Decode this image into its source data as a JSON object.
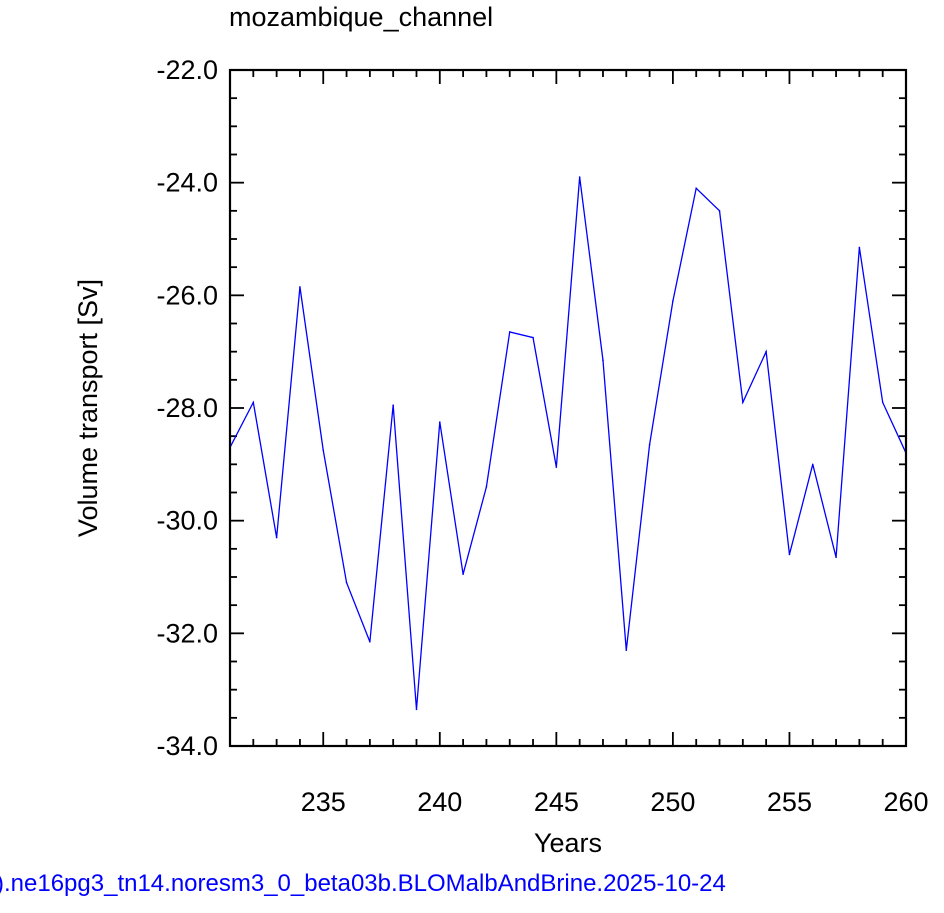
{
  "title": "mozambique_channel",
  "footer": ").ne16pg3_tn14.noresm3_0_beta03b.BLOMalbAndBrine.2025-10-24",
  "chart_data": {
    "type": "line",
    "title": "mozambique_channel",
    "xlabel": "Years",
    "ylabel": "Volume transport [Sv]",
    "xlim": [
      231,
      260
    ],
    "ylim": [
      -34.0,
      -22.0
    ],
    "x_ticks": [
      235,
      240,
      245,
      250,
      255,
      260
    ],
    "x_tick_labels": [
      "235",
      "240",
      "245",
      "250",
      "255",
      "260"
    ],
    "y_ticks": [
      -34.0,
      -32.0,
      -30.0,
      -28.0,
      -26.0,
      -24.0,
      -22.0
    ],
    "y_tick_labels": [
      "-34.0",
      "-32.0",
      "-30.0",
      "-28.0",
      "-26.0",
      "-24.0",
      "-22.0"
    ],
    "line_color": "#0000ff",
    "series": [
      {
        "x": [
          231,
          232,
          233,
          234,
          235,
          236,
          237,
          238,
          239,
          240,
          241,
          242,
          243,
          244,
          245,
          246,
          247,
          248,
          249,
          250,
          251,
          252,
          253,
          254,
          255,
          256,
          257,
          258,
          259,
          260
        ],
        "values": [
          -28.7,
          -27.9,
          -30.3,
          -25.85,
          -28.75,
          -31.1,
          -32.15,
          -27.95,
          -33.35,
          -28.25,
          -30.95,
          -29.4,
          -26.65,
          -26.75,
          -29.05,
          -23.9,
          -27.15,
          -32.3,
          -28.65,
          -26.1,
          -24.1,
          -24.5,
          -27.9,
          -27.0,
          -30.6,
          -29.0,
          -30.65,
          -25.15,
          -27.9,
          -28.8
        ]
      }
    ]
  }
}
